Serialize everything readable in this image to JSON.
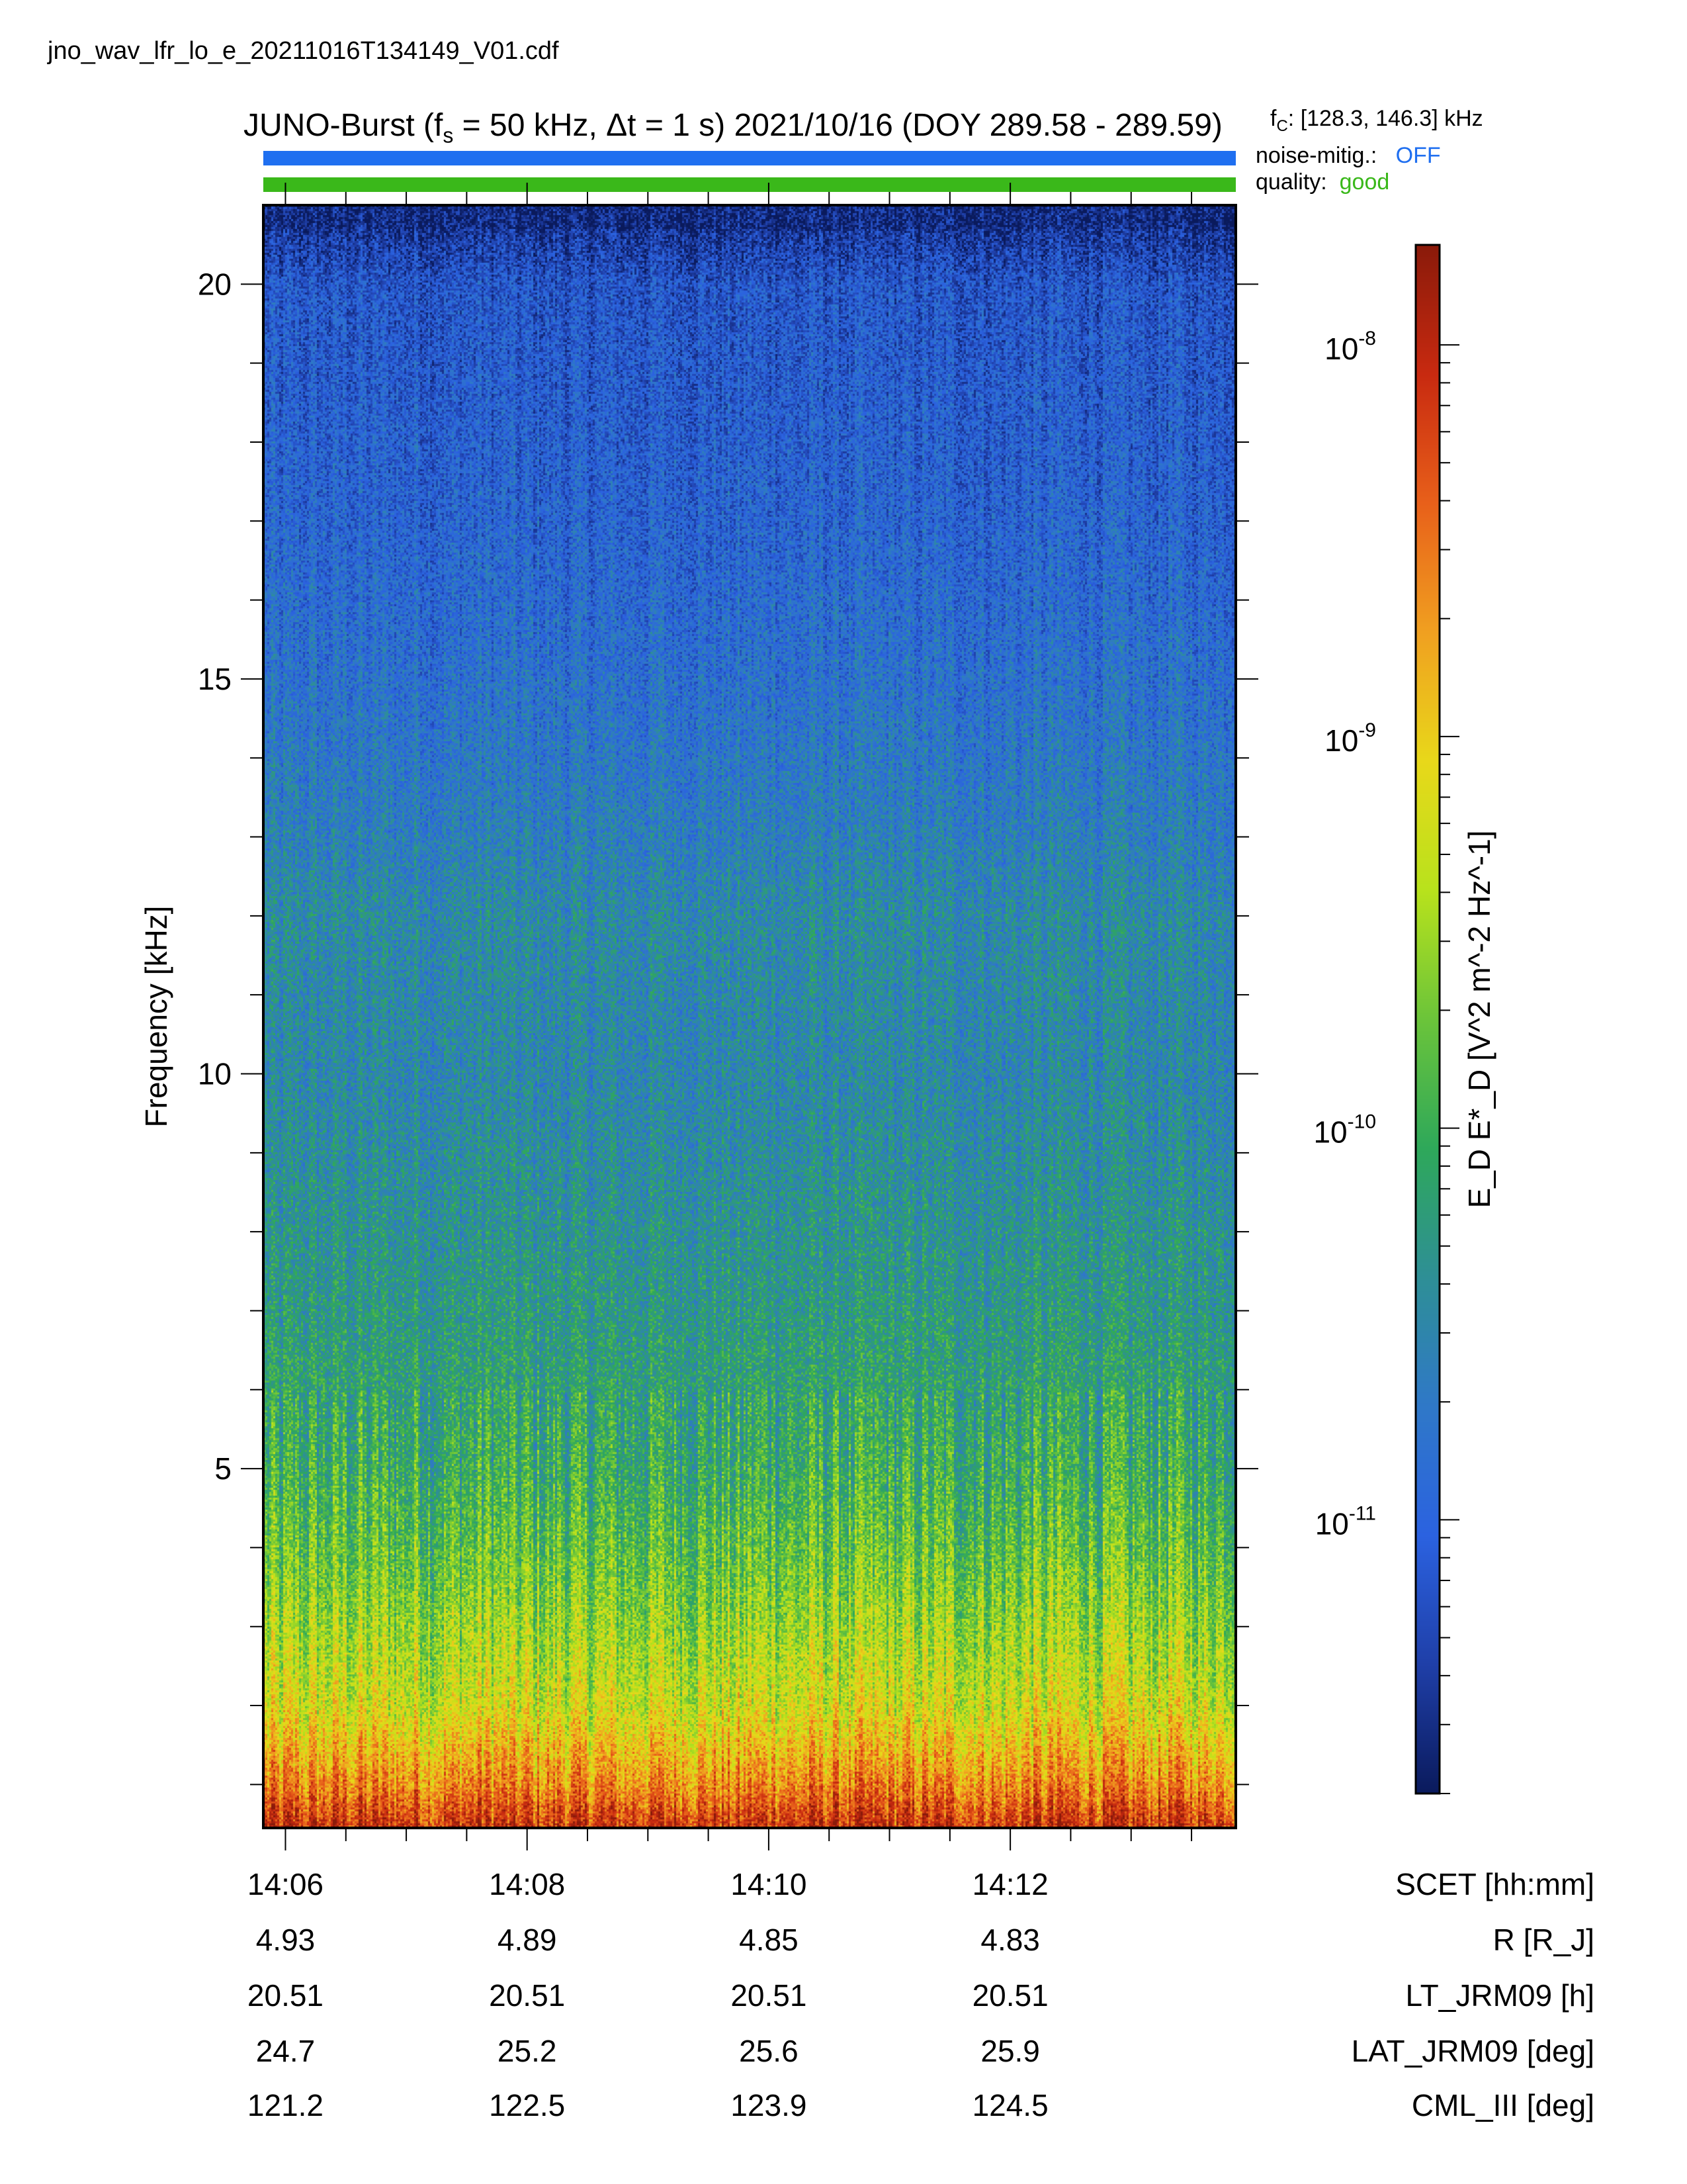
{
  "filename": "jno_wav_lfr_lo_e_20211016T134149_V01.cdf",
  "title": {
    "prefix": "JUNO-Burst (f",
    "fs_sub": "s",
    "mid": " = 50 kHz, Δt = 1 s)  2021/10/16 (DOY 289.58 - 289.59)"
  },
  "fc": {
    "prefix": "f",
    "sub": "C",
    "value": ": [128.3, 146.3] kHz"
  },
  "status": {
    "noise_label": "noise-mitig.:",
    "noise_value": "OFF",
    "noise_color": "#1f6ff0",
    "quality_label": "quality:",
    "quality_value": "good",
    "quality_color": "#3ab81a"
  },
  "chart_data": {
    "type": "heatmap",
    "ylabel": "Frequency [kHz]",
    "ylim": [
      0.45,
      21
    ],
    "yticks": [
      5,
      10,
      15,
      20
    ],
    "ytick_labels": [
      "5",
      "10",
      "15",
      "20"
    ],
    "xlim": [
      "14:05:49",
      "14:13:52"
    ],
    "xticks": [
      "14:06",
      "14:08",
      "14:10",
      "14:12"
    ],
    "xlabel": "SCET [hh:mm]",
    "colorbar": {
      "label": "E_D E*_D [V^2 m^-2 Hz^-1]",
      "scale": "log",
      "range": [
        2e-12,
        1.8e-08
      ],
      "tick_values": [
        1e-08,
        1e-09,
        1e-10,
        1e-11
      ],
      "tick_labels": [
        {
          "base": "10",
          "exp": "-8"
        },
        {
          "base": "10",
          "exp": "-9"
        },
        {
          "base": "10",
          "exp": "-10"
        },
        {
          "base": "10",
          "exp": "-11"
        }
      ],
      "colormap": [
        "#0a1a5c",
        "#1f3fa8",
        "#2b62e0",
        "#2f78c8",
        "#2e8f96",
        "#2ea85a",
        "#6bc43a",
        "#b8e21c",
        "#e8d81a",
        "#f0a020",
        "#e8601a",
        "#c82a10",
        "#8a1a0a"
      ]
    },
    "intensity_profile": {
      "freq_khz": [
        0.5,
        1,
        2,
        3,
        4,
        5,
        7,
        10,
        12,
        13,
        15,
        17,
        20,
        20.7
      ],
      "level": [
        0.9,
        0.78,
        0.62,
        0.55,
        0.48,
        0.42,
        0.36,
        0.3,
        0.31,
        0.27,
        0.22,
        0.18,
        0.14,
        0.06
      ]
    },
    "ephemeris": {
      "columns": [
        "14:06",
        "14:08",
        "14:10",
        "14:12"
      ],
      "rows": [
        {
          "name": "SCET [hh:mm]",
          "values": [
            "14:06",
            "14:08",
            "14:10",
            "14:12"
          ]
        },
        {
          "name": "R [R_J]",
          "values": [
            "4.93",
            "4.89",
            "4.85",
            "4.83"
          ]
        },
        {
          "name": "LT_JRM09 [h]",
          "values": [
            "20.51",
            "20.51",
            "20.51",
            "20.51"
          ]
        },
        {
          "name": "LAT_JRM09 [deg]",
          "values": [
            "24.7",
            "25.2",
            "25.6",
            "25.9"
          ]
        },
        {
          "name": "CML_III [deg]",
          "values": [
            "121.2",
            "122.5",
            "123.9",
            "124.5"
          ]
        }
      ]
    }
  }
}
